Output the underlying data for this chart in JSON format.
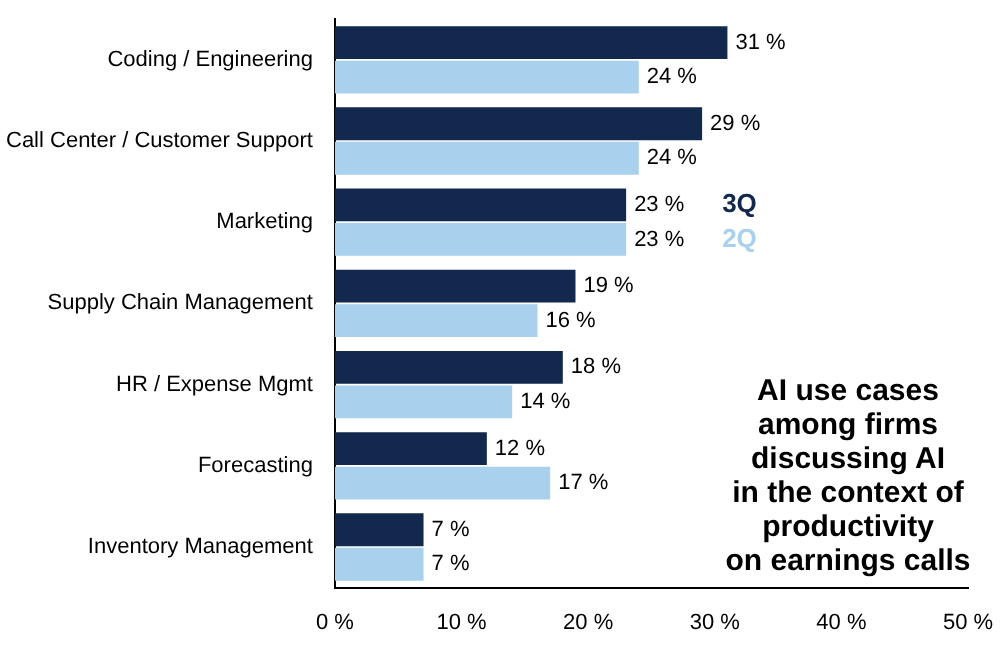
{
  "chart_data": {
    "type": "bar",
    "orientation": "horizontal",
    "categories": [
      "Coding / Engineering",
      "Call Center / Customer Support",
      "Marketing",
      "Supply Chain Management",
      "HR / Expense Mgmt",
      "Forecasting",
      "Inventory Management"
    ],
    "series": [
      {
        "name": "3Q",
        "color": "#12284c",
        "values": [
          31,
          29,
          23,
          19,
          18,
          12,
          7
        ],
        "value_labels": [
          "31 %",
          "29 %",
          "23 %",
          "19 %",
          "18 %",
          "12 %",
          "7 %"
        ]
      },
      {
        "name": "2Q",
        "color": "#a9d0ec",
        "values": [
          24,
          24,
          23,
          16,
          14,
          17,
          7
        ],
        "value_labels": [
          "24 %",
          "24 %",
          "23 %",
          "16 %",
          "14 %",
          "17 %",
          "7 %"
        ]
      }
    ],
    "xlim": [
      0,
      50
    ],
    "xticks": [
      {
        "value": 0,
        "label": "0 %"
      },
      {
        "value": 10,
        "label": "10 %"
      },
      {
        "value": 20,
        "label": "20 %"
      },
      {
        "value": 30,
        "label": "30 %"
      },
      {
        "value": 40,
        "label": "40 %"
      },
      {
        "value": 50,
        "label": "50 %"
      }
    ],
    "grid": false,
    "legend": "right",
    "annotations": [
      "AI use cases\namong firms\ndiscussing AI\nin the context of\nproductivity\non earnings calls"
    ]
  }
}
